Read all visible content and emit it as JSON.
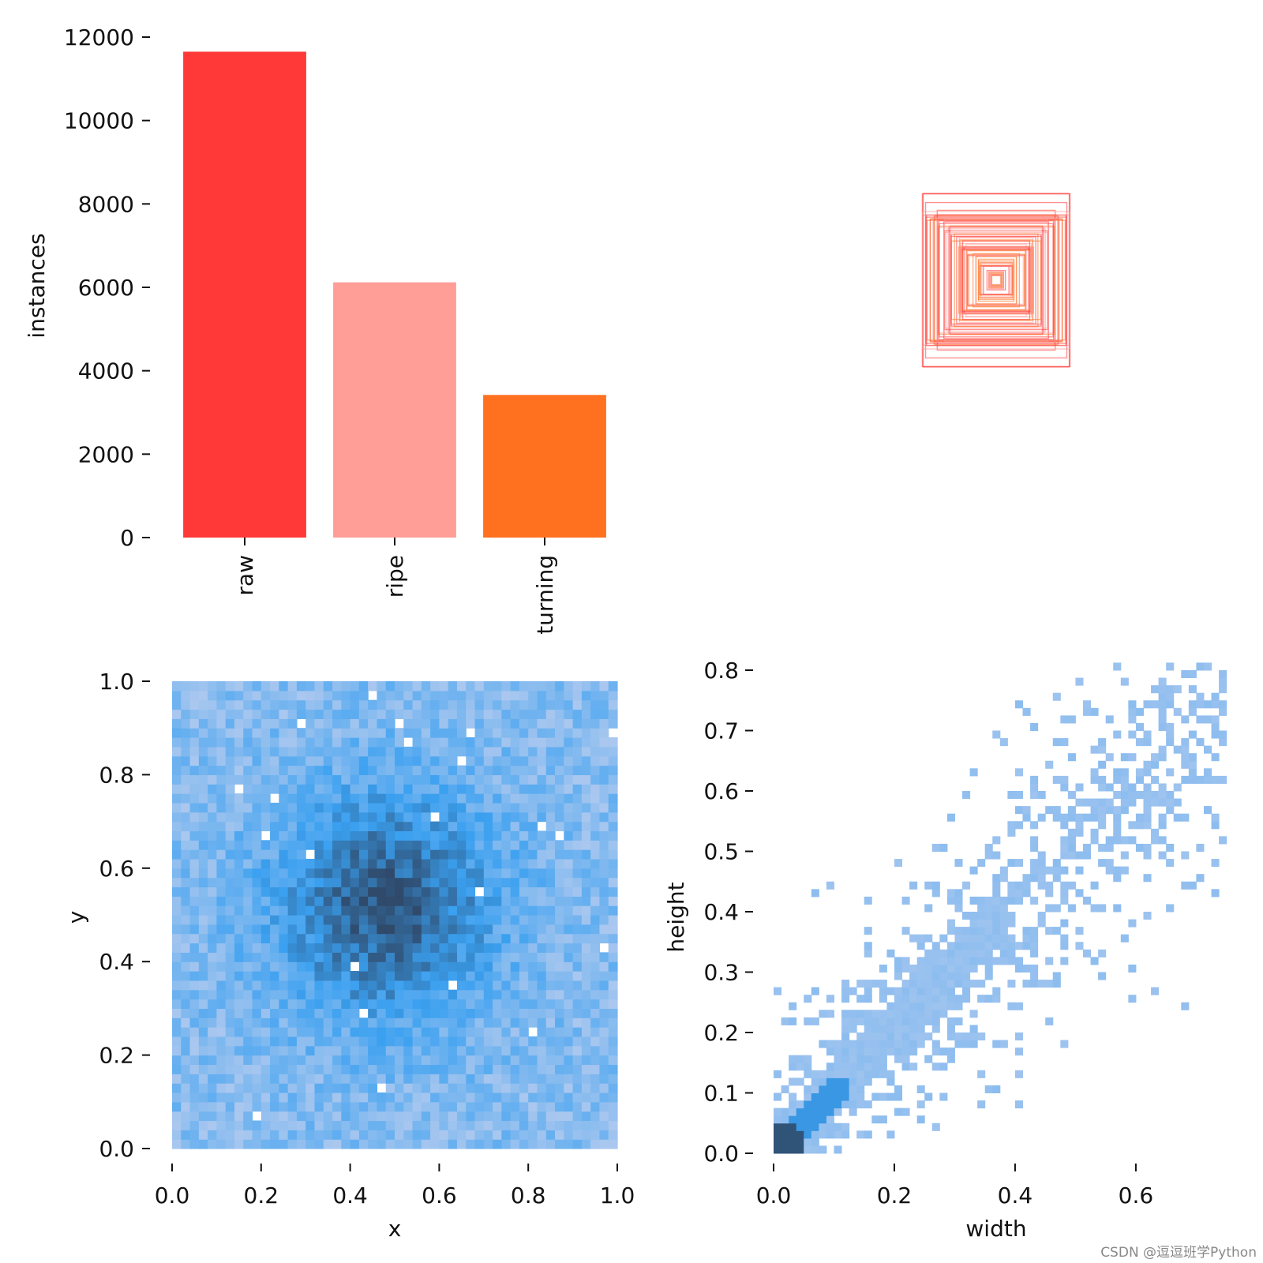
{
  "colors": {
    "raw": "#ff3838",
    "ripe": "#ff9d97",
    "turning": "#ff701f",
    "hist_light": "#a9c7ef",
    "hist_mid": "#3aa0f0",
    "hist_dark": "#2f4a6b"
  },
  "watermark": "CSDN @逗逗班学Python",
  "chart_data": [
    {
      "type": "bar",
      "categories": [
        "raw",
        "ripe",
        "turning"
      ],
      "values": [
        11650,
        6120,
        3420
      ],
      "colors": [
        "#ff3838",
        "#ff9d97",
        "#ff701f"
      ],
      "xlabel": "",
      "ylabel": "instances",
      "ylim": [
        0,
        12000
      ],
      "yticks": [
        "0",
        "2000",
        "4000",
        "6000",
        "8000",
        "10000",
        "12000"
      ],
      "xtick_rotation": "vertical",
      "grid": false
    },
    {
      "type": "box-overlay",
      "description_axis": "none",
      "colors": [
        "#ff3838",
        "#ff9d97",
        "#ff701f"
      ],
      "grid": false
    },
    {
      "type": "heatmap",
      "xlabel": "x",
      "ylabel": "y",
      "xlim": [
        0,
        1
      ],
      "ylim": [
        0,
        1
      ],
      "xticks": [
        "0.0",
        "0.2",
        "0.4",
        "0.6",
        "0.8",
        "1.0"
      ],
      "yticks": [
        "0.0",
        "0.2",
        "0.4",
        "0.6",
        "0.8",
        "1.0"
      ],
      "peak_center": [
        0.48,
        0.52
      ],
      "bins": 50,
      "grid": false
    },
    {
      "type": "heatmap",
      "xlabel": "width",
      "ylabel": "height",
      "xlim": [
        0,
        0.74
      ],
      "ylim": [
        0,
        0.8
      ],
      "xticks": [
        "0.0",
        "0.2",
        "0.4",
        "0.6"
      ],
      "yticks": [
        "0.0",
        "0.1",
        "0.2",
        "0.3",
        "0.4",
        "0.5",
        "0.6",
        "0.7",
        "0.8"
      ],
      "trend": "height ≈ width",
      "densest_region": [
        0.02,
        0.02
      ],
      "grid": false
    }
  ]
}
